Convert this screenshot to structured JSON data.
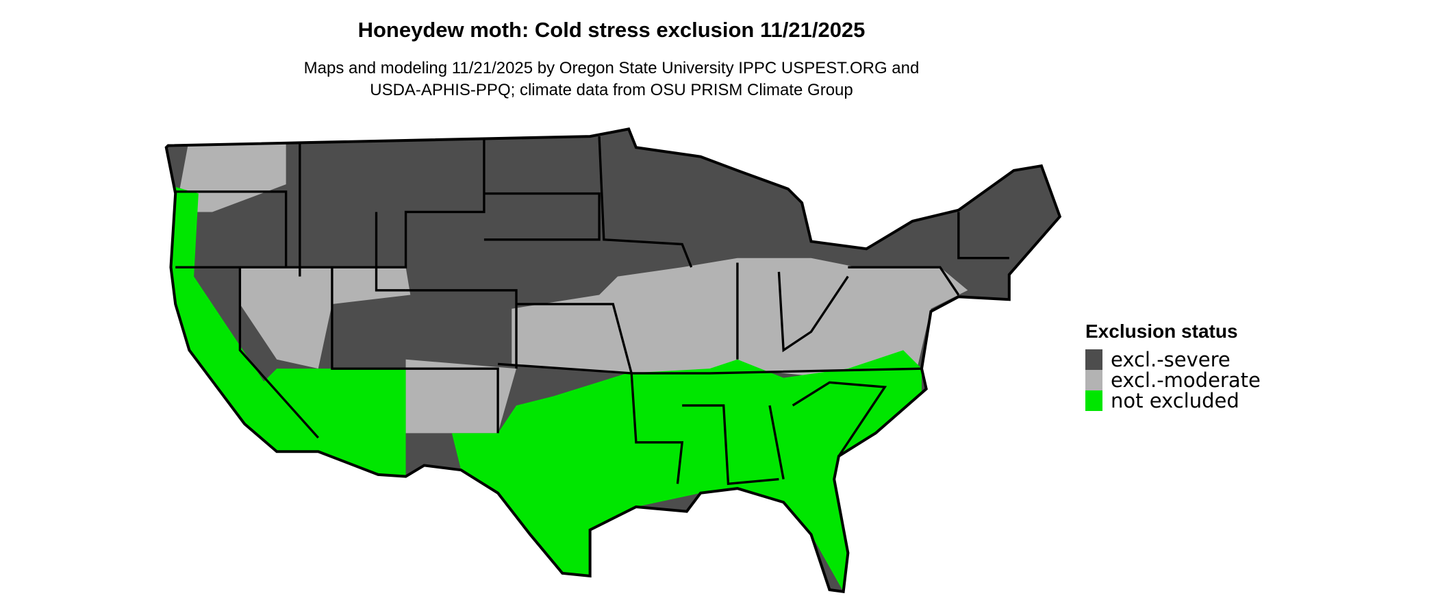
{
  "title": "Honeydew moth: Cold stress exclusion 11/21/2025",
  "subtitle_lines": [
    "Maps and modeling 11/21/2025 by Oregon State University IPPC USPEST.ORG and",
    "USDA-APHIS-PPQ; climate data from OSU PRISM Climate Group"
  ],
  "legend": {
    "title": "Exclusion status",
    "items": [
      {
        "label": "excl.-severe",
        "color": "#4d4d4d"
      },
      {
        "label": "excl.-moderate",
        "color": "#b3b3b3"
      },
      {
        "label": "not excluded",
        "color": "#00e600"
      }
    ]
  }
}
